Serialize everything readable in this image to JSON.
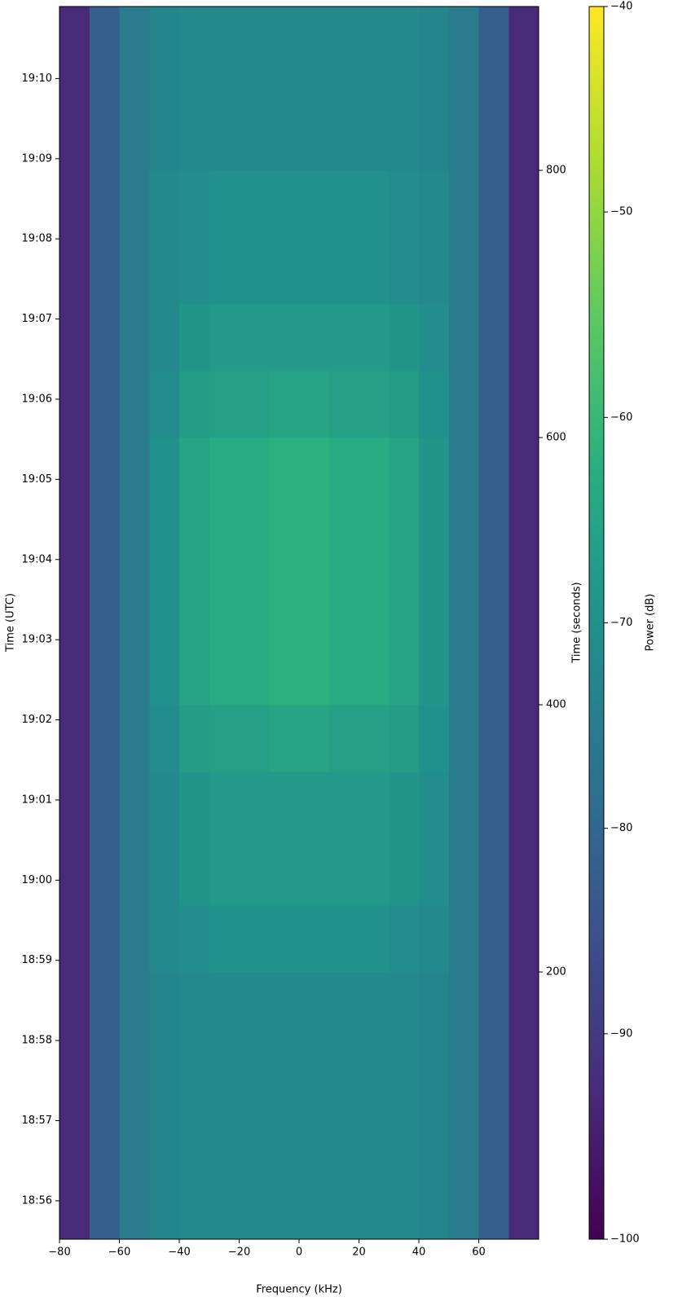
{
  "chart_data": {
    "type": "heatmap",
    "xlabel": "Frequency (kHz)",
    "ylabel": "Time (UTC)",
    "y2label": "Time (seconds)",
    "colorbar_label": "Power (dB)",
    "xlim": [
      -80,
      80
    ],
    "xticks": [
      {
        "value": -80,
        "label": "−80"
      },
      {
        "value": -60,
        "label": "−60"
      },
      {
        "value": -40,
        "label": "−40"
      },
      {
        "value": -20,
        "label": "−20"
      },
      0,
      20,
      40,
      60
    ],
    "ylim": [
      0,
      922.6
    ],
    "yticks": [
      {
        "value": 28.7,
        "label": "18:56"
      },
      {
        "value": 88.7,
        "label": "18:57"
      },
      {
        "value": 148.7,
        "label": "18:58"
      },
      {
        "value": 208.7,
        "label": "18:59"
      },
      {
        "value": 268.7,
        "label": "19:00"
      },
      {
        "value": 328.7,
        "label": "19:01"
      },
      {
        "value": 388.7,
        "label": "19:02"
      },
      {
        "value": 448.7,
        "label": "19:03"
      },
      {
        "value": 508.7,
        "label": "19:04"
      },
      {
        "value": 568.7,
        "label": "19:05"
      },
      {
        "value": 628.7,
        "label": "19:06"
      },
      {
        "value": 688.7,
        "label": "19:07"
      },
      {
        "value": 748.7,
        "label": "19:08"
      },
      {
        "value": 808.7,
        "label": "19:09"
      },
      {
        "value": 868.7,
        "label": "19:10"
      }
    ],
    "y2lim": [
      0,
      922.6
    ],
    "y2ticks": [
      200,
      400,
      600,
      800
    ],
    "zlim": [
      -100,
      -40
    ],
    "zticks": [
      {
        "value": -40,
        "label": "−40"
      },
      {
        "value": -50,
        "label": "−50"
      },
      {
        "value": -60,
        "label": "−60"
      },
      {
        "value": -70,
        "label": "−70"
      },
      {
        "value": -80,
        "label": "−80"
      },
      {
        "value": -90,
        "label": "−90"
      },
      {
        "value": -100,
        "label": "−100"
      }
    ],
    "colormap": [
      "#440154",
      "#472d7b",
      "#3b528b",
      "#2c728e",
      "#21918c",
      "#28ae80",
      "#5ec962",
      "#addc30",
      "#fde725"
    ],
    "x_bins": [
      -80,
      -70,
      -60,
      -50,
      -40,
      -30,
      -20,
      -10,
      0,
      10,
      20,
      30,
      40,
      50,
      60,
      70,
      80
    ],
    "y_bins": [
      0,
      50,
      100,
      150,
      200,
      250,
      300,
      350,
      400,
      450,
      500,
      550,
      600,
      650,
      700,
      750,
      800,
      850,
      900,
      922.6
    ],
    "z": [
      [
        -93,
        -82,
        -75,
        -73,
        -72,
        -72,
        -72,
        -72,
        -72,
        -72,
        -72,
        -72,
        -73,
        -75,
        -82,
        -93
      ],
      [
        -93,
        -82,
        -75,
        -73,
        -72,
        -72,
        -72,
        -72,
        -72,
        -72,
        -72,
        -72,
        -73,
        -75,
        -82,
        -93
      ],
      [
        -93,
        -82,
        -75,
        -73,
        -72,
        -72,
        -72,
        -72,
        -72,
        -72,
        -72,
        -72,
        -73,
        -75,
        -82,
        -93
      ],
      [
        -93,
        -82,
        -75,
        -73,
        -72,
        -72,
        -72,
        -72,
        -72,
        -72,
        -72,
        -72,
        -73,
        -75,
        -82,
        -93
      ],
      [
        -93,
        -82,
        -75,
        -72,
        -71,
        -70,
        -70,
        -70,
        -70,
        -70,
        -70,
        -71,
        -72,
        -75,
        -82,
        -93
      ],
      [
        -93,
        -82,
        -75,
        -72,
        -69,
        -68,
        -68,
        -68,
        -68,
        -68,
        -68,
        -69,
        -71,
        -75,
        -82,
        -93
      ],
      [
        -93,
        -82,
        -75,
        -72,
        -69,
        -68,
        -68,
        -68,
        -68,
        -68,
        -68,
        -69,
        -71,
        -75,
        -82,
        -93
      ],
      [
        -93,
        -82,
        -75,
        -71,
        -67,
        -66,
        -66,
        -65,
        -65,
        -66,
        -66,
        -67,
        -70,
        -75,
        -82,
        -93
      ],
      [
        -93,
        -82,
        -75,
        -70,
        -65,
        -63,
        -63,
        -62,
        -62,
        -63,
        -63,
        -65,
        -69,
        -75,
        -82,
        -93
      ],
      [
        -93,
        -82,
        -75,
        -70,
        -65,
        -63,
        -63,
        -62,
        -62,
        -63,
        -63,
        -65,
        -69,
        -75,
        -82,
        -93
      ],
      [
        -93,
        -82,
        -75,
        -70,
        -65,
        -63,
        -63,
        -62,
        -62,
        -63,
        -63,
        -65,
        -69,
        -75,
        -82,
        -93
      ],
      [
        -93,
        -82,
        -75,
        -70,
        -65,
        -63,
        -63,
        -62,
        -62,
        -63,
        -63,
        -65,
        -69,
        -75,
        -82,
        -93
      ],
      [
        -93,
        -82,
        -75,
        -71,
        -67,
        -66,
        -66,
        -65,
        -65,
        -66,
        -66,
        -67,
        -70,
        -75,
        -82,
        -93
      ],
      [
        -93,
        -82,
        -75,
        -72,
        -69,
        -68,
        -68,
        -68,
        -68,
        -68,
        -68,
        -69,
        -71,
        -75,
        -82,
        -93
      ],
      [
        -93,
        -82,
        -75,
        -72,
        -71,
        -70,
        -70,
        -70,
        -70,
        -70,
        -70,
        -71,
        -72,
        -75,
        -82,
        -93
      ],
      [
        -93,
        -82,
        -75,
        -72,
        -71,
        -70,
        -70,
        -70,
        -70,
        -70,
        -70,
        -71,
        -72,
        -75,
        -82,
        -93
      ],
      [
        -93,
        -82,
        -75,
        -73,
        -72,
        -72,
        -72,
        -72,
        -72,
        -72,
        -72,
        -72,
        -73,
        -75,
        -82,
        -93
      ],
      [
        -93,
        -82,
        -75,
        -73,
        -72,
        -72,
        -72,
        -72,
        -72,
        -72,
        -72,
        -72,
        -73,
        -75,
        -82,
        -93
      ],
      [
        -93,
        -82,
        -75,
        -73,
        -72,
        -72,
        -72,
        -72,
        -72,
        -72,
        -72,
        -72,
        -73,
        -75,
        -82,
        -93
      ]
    ]
  }
}
